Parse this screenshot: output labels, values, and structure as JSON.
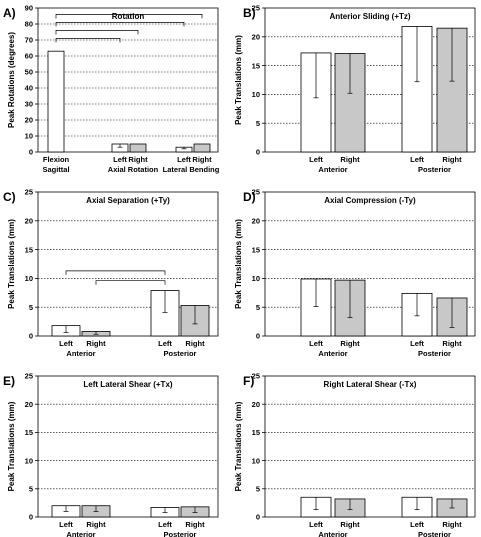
{
  "colors": {
    "left_bar": "#ffffff",
    "right_bar": "#c8c8c8",
    "outline": "#000000"
  },
  "chart_data": [
    {
      "id": "A",
      "letter": "A)",
      "type": "bar",
      "title": "Rotation",
      "ylabel": "Peak Rotations (degrees)",
      "xlabel": "",
      "ylim": [
        0,
        90
      ],
      "yticks": [
        0,
        10,
        20,
        30,
        40,
        50,
        60,
        70,
        80,
        90
      ],
      "grid": "horizontal-dotted",
      "bars": [
        {
          "label": "",
          "side": "left",
          "value": 63,
          "err": 0
        },
        {
          "label": "Left",
          "side": "left",
          "value": 5,
          "err": 2
        },
        {
          "label": "Right",
          "side": "right",
          "value": 5,
          "err": 0
        },
        {
          "label": "Left",
          "side": "left",
          "value": 3,
          "err": 1
        },
        {
          "label": "Right",
          "side": "right",
          "value": 5,
          "err": 0
        }
      ],
      "groups": [
        "Sagittal",
        "Axial Rotation",
        "Lateral Bending"
      ],
      "extra_labels": [
        "Flexion",
        "Rotation",
        "Bending"
      ],
      "significance": [
        [
          0,
          4
        ],
        [
          0,
          3
        ],
        [
          0,
          2
        ],
        [
          0,
          1
        ]
      ]
    },
    {
      "id": "B",
      "letter": "B)",
      "type": "bar",
      "title": "Anterior Sliding (+Tz)",
      "ylabel": "Peak Translations (mm)",
      "xlabel": "",
      "ylim": [
        0,
        25
      ],
      "yticks": [
        0,
        5,
        10,
        15,
        20,
        25
      ],
      "grid": "horizontal-dotted",
      "bars": [
        {
          "label": "Left",
          "side": "left",
          "value": 17.2,
          "err": 7.8
        },
        {
          "label": "Right",
          "side": "right",
          "value": 17.1,
          "err": 6.9
        },
        {
          "label": "Left",
          "side": "left",
          "value": 21.8,
          "err": 9.6
        },
        {
          "label": "Right",
          "side": "right",
          "value": 21.5,
          "err": 9.2
        }
      ],
      "groups": [
        "Anterior",
        "Posterior"
      ],
      "significance": []
    },
    {
      "id": "C",
      "letter": "C)",
      "type": "bar",
      "title": "Axial Separation (+Ty)",
      "ylabel": "Peak Translations (mm)",
      "xlabel": "",
      "ylim": [
        0,
        25
      ],
      "yticks": [
        0,
        5,
        10,
        15,
        20,
        25
      ],
      "grid": "horizontal-dotted",
      "bars": [
        {
          "label": "Left",
          "side": "left",
          "value": 1.8,
          "err": 1.2
        },
        {
          "label": "Right",
          "side": "right",
          "value": 0.8,
          "err": 0.5
        },
        {
          "label": "Left",
          "side": "left",
          "value": 7.9,
          "err": 3.8
        },
        {
          "label": "Right",
          "side": "right",
          "value": 5.3,
          "err": 3.2
        }
      ],
      "groups": [
        "Anterior",
        "Posterior"
      ],
      "significance": [
        [
          0,
          2
        ],
        [
          1,
          2
        ]
      ]
    },
    {
      "id": "D",
      "letter": "D)",
      "type": "bar",
      "title": "Axial Compression (-Ty)",
      "ylabel": "Peak Translations (mm)",
      "xlabel": "",
      "ylim": [
        0,
        25
      ],
      "yticks": [
        0,
        5,
        10,
        15,
        20,
        25
      ],
      "grid": "horizontal-dotted",
      "bars": [
        {
          "label": "Left",
          "side": "left",
          "value": 9.9,
          "err": 4.8
        },
        {
          "label": "Right",
          "side": "right",
          "value": 9.7,
          "err": 6.5
        },
        {
          "label": "Left",
          "side": "left",
          "value": 7.4,
          "err": 3.9
        },
        {
          "label": "Right",
          "side": "right",
          "value": 6.6,
          "err": 5.1
        }
      ],
      "groups": [
        "Anterior",
        "Posterior"
      ],
      "significance": []
    },
    {
      "id": "E",
      "letter": "E)",
      "type": "bar",
      "title": "Left Lateral Shear (+Tx)",
      "ylabel": "Peak Translations (mm)",
      "xlabel": "",
      "ylim": [
        0,
        25
      ],
      "yticks": [
        0,
        5,
        10,
        15,
        20,
        25
      ],
      "grid": "horizontal-dotted",
      "bars": [
        {
          "label": "Left",
          "side": "left",
          "value": 2.0,
          "err": 1.0
        },
        {
          "label": "Right",
          "side": "right",
          "value": 2.0,
          "err": 1.0
        },
        {
          "label": "Left",
          "side": "left",
          "value": 1.7,
          "err": 0.9
        },
        {
          "label": "Right",
          "side": "right",
          "value": 1.8,
          "err": 1.0
        }
      ],
      "groups": [
        "Anterior",
        "Posterior"
      ],
      "significance": []
    },
    {
      "id": "F",
      "letter": "F)",
      "type": "bar",
      "title": "Right Lateral Shear (-Tx)",
      "ylabel": "Peak Translations (mm)",
      "xlabel": "",
      "ylim": [
        0,
        25
      ],
      "yticks": [
        0,
        5,
        10,
        15,
        20,
        25
      ],
      "grid": "horizontal-dotted",
      "bars": [
        {
          "label": "Left",
          "side": "left",
          "value": 3.5,
          "err": 2.2
        },
        {
          "label": "Right",
          "side": "right",
          "value": 3.2,
          "err": 1.9
        },
        {
          "label": "Left",
          "side": "left",
          "value": 3.5,
          "err": 2.2
        },
        {
          "label": "Right",
          "side": "right",
          "value": 3.2,
          "err": 1.6
        }
      ],
      "groups": [
        "Anterior",
        "Posterior"
      ],
      "significance": []
    }
  ]
}
